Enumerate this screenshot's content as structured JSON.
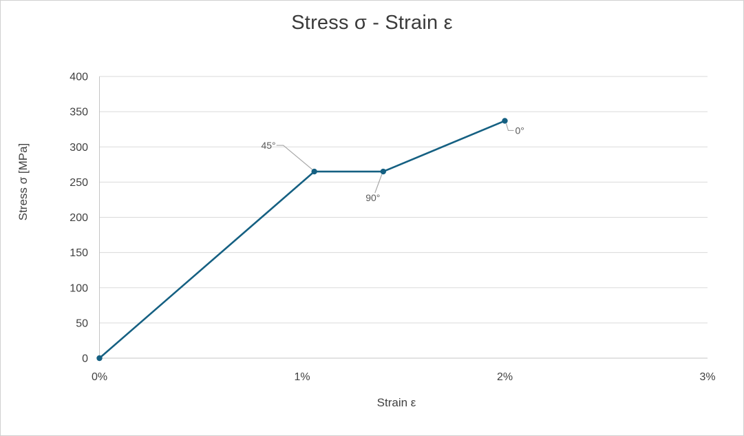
{
  "chart_data": {
    "type": "line",
    "title": "Stress σ - Strain ε",
    "xlabel": "Strain ε",
    "ylabel": "Stress σ [MPa]",
    "xlim_strain_pct": [
      0,
      3
    ],
    "ylim_stress_mpa": [
      0,
      400
    ],
    "x_tick_values_pct": [
      0,
      1,
      2,
      3
    ],
    "x_tick_labels": [
      "0%",
      "1%",
      "2%",
      "3%"
    ],
    "y_tick_values_mpa": [
      0,
      50,
      100,
      150,
      200,
      250,
      300,
      350,
      400
    ],
    "grid": "horizontal-only",
    "legend": "none",
    "series": [
      {
        "name": "stress-strain-curve",
        "color": "#156082",
        "marker": "circle",
        "points_strain_pct": [
          0,
          1.06,
          1.4,
          2.0
        ],
        "points_stress_mpa": [
          0,
          265,
          265,
          337
        ]
      }
    ],
    "annotations": [
      {
        "label": "45°",
        "attached_point_index": 1
      },
      {
        "label": "90°",
        "attached_point_index": 2
      },
      {
        "label": "0°",
        "attached_point_index": 3
      }
    ]
  },
  "colors": {
    "series": "#156082",
    "gridline": "#dadada",
    "axis_line": "#c4c4c4",
    "tick_label": "#404040",
    "title": "#3b3b3b",
    "axis_title": "#404040",
    "annotation_text": "#595959",
    "leader_line": "#a6a6a6",
    "background": "#ffffff",
    "frame_border": "#d0d0d0"
  }
}
